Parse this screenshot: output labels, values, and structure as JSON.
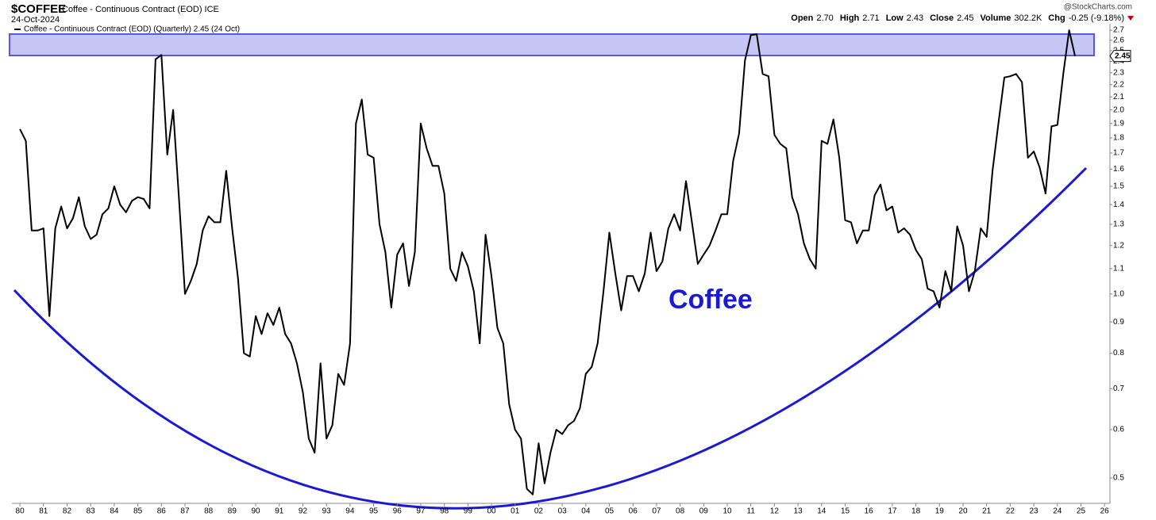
{
  "chart_data": {
    "type": "line",
    "title": "$COFFEE",
    "subtitle": "Coffee - Continuous Contract (EOD) ICE",
    "date": "24-Oct-2024",
    "source": "@StockCharts.com",
    "quote": [
      {
        "label": "Open",
        "value": "2.70"
      },
      {
        "label": "High",
        "value": "2.71"
      },
      {
        "label": "Low",
        "value": "2.43"
      },
      {
        "label": "Close",
        "value": "2.45"
      },
      {
        "label": "Volume",
        "value": "302.2K"
      },
      {
        "label": "Chg",
        "value": "-0.25 (-9.18%)"
      }
    ],
    "annotation": "Coffee",
    "last_value": 2.45,
    "log_scale": true,
    "grid": false,
    "x": [
      1980,
      1980.25,
      1980.5,
      1980.75,
      1981,
      1981.25,
      1981.5,
      1981.75,
      1982,
      1982.25,
      1982.5,
      1982.75,
      1983,
      1983.25,
      1983.5,
      1983.75,
      1984,
      1984.25,
      1984.5,
      1984.75,
      1985,
      1985.25,
      1985.5,
      1985.75,
      1986,
      1986.25,
      1986.5,
      1986.75,
      1987,
      1987.25,
      1987.5,
      1987.75,
      1988,
      1988.25,
      1988.5,
      1988.75,
      1989,
      1989.25,
      1989.5,
      1989.75,
      1990,
      1990.25,
      1990.5,
      1990.75,
      1991,
      1991.25,
      1991.5,
      1991.75,
      1992,
      1992.25,
      1992.5,
      1992.75,
      1993,
      1993.25,
      1993.5,
      1993.75,
      1994,
      1994.25,
      1994.5,
      1994.75,
      1995,
      1995.25,
      1995.5,
      1995.75,
      1996,
      1996.25,
      1996.5,
      1996.75,
      1997,
      1997.25,
      1997.5,
      1997.75,
      1998,
      1998.25,
      1998.5,
      1998.75,
      1999,
      1999.25,
      1999.5,
      1999.75,
      2000,
      2000.25,
      2000.5,
      2000.75,
      2001,
      2001.25,
      2001.5,
      2001.75,
      2002,
      2002.25,
      2002.5,
      2002.75,
      2003,
      2003.25,
      2003.5,
      2003.75,
      2004,
      2004.25,
      2004.5,
      2004.75,
      2005,
      2005.25,
      2005.5,
      2005.75,
      2006,
      2006.25,
      2006.5,
      2006.75,
      2007,
      2007.25,
      2007.5,
      2007.75,
      2008,
      2008.25,
      2008.5,
      2008.75,
      2009,
      2009.25,
      2009.5,
      2009.75,
      2010,
      2010.25,
      2010.5,
      2010.75,
      2011,
      2011.25,
      2011.5,
      2011.75,
      2012,
      2012.25,
      2012.5,
      2012.75,
      2013,
      2013.25,
      2013.5,
      2013.75,
      2014,
      2014.25,
      2014.5,
      2014.75,
      2015,
      2015.25,
      2015.5,
      2015.75,
      2016,
      2016.25,
      2016.5,
      2016.75,
      2017,
      2017.25,
      2017.5,
      2017.75,
      2018,
      2018.25,
      2018.5,
      2018.75,
      2019,
      2019.25,
      2019.5,
      2019.75,
      2020,
      2020.25,
      2020.5,
      2020.75,
      2021,
      2021.25,
      2021.5,
      2021.75,
      2022,
      2022.25,
      2022.5,
      2022.75,
      2023,
      2023.25,
      2023.5,
      2023.75,
      2024,
      2024.25,
      2024.5,
      2024.75
    ],
    "series": [
      {
        "name": "Coffee - Continuous Contract (EOD) (Quarterly) 2.45 (24 Oct)",
        "color": "#000000",
        "values": [
          1.86,
          1.78,
          1.27,
          1.27,
          1.28,
          0.92,
          1.28,
          1.39,
          1.28,
          1.33,
          1.44,
          1.29,
          1.23,
          1.25,
          1.35,
          1.38,
          1.5,
          1.4,
          1.36,
          1.42,
          1.44,
          1.43,
          1.38,
          2.42,
          2.46,
          1.69,
          2.0,
          1.42,
          1.0,
          1.05,
          1.12,
          1.27,
          1.34,
          1.31,
          1.31,
          1.59,
          1.28,
          1.06,
          0.8,
          0.79,
          0.92,
          0.86,
          0.93,
          0.89,
          0.95,
          0.86,
          0.83,
          0.77,
          0.69,
          0.58,
          0.55,
          0.77,
          0.58,
          0.61,
          0.74,
          0.71,
          0.83,
          1.9,
          2.08,
          1.69,
          1.67,
          1.3,
          1.17,
          0.95,
          1.16,
          1.21,
          1.03,
          1.17,
          1.9,
          1.73,
          1.62,
          1.62,
          1.46,
          1.1,
          1.05,
          1.17,
          1.11,
          1.01,
          0.83,
          1.25,
          1.07,
          0.88,
          0.83,
          0.66,
          0.6,
          0.58,
          0.48,
          0.47,
          0.57,
          0.49,
          0.55,
          0.6,
          0.59,
          0.61,
          0.62,
          0.65,
          0.74,
          0.76,
          0.83,
          1.01,
          1.26,
          1.08,
          0.94,
          1.07,
          1.07,
          1.01,
          1.08,
          1.26,
          1.09,
          1.13,
          1.28,
          1.35,
          1.27,
          1.53,
          1.31,
          1.12,
          1.16,
          1.2,
          1.27,
          1.35,
          1.35,
          1.65,
          1.83,
          2.41,
          2.65,
          2.66,
          2.29,
          2.27,
          1.82,
          1.76,
          1.73,
          1.44,
          1.35,
          1.21,
          1.14,
          1.1,
          1.78,
          1.76,
          1.93,
          1.67,
          1.32,
          1.31,
          1.21,
          1.27,
          1.27,
          1.45,
          1.51,
          1.37,
          1.39,
          1.26,
          1.28,
          1.25,
          1.18,
          1.14,
          1.02,
          1.01,
          0.95,
          1.09,
          1.01,
          1.29,
          1.2,
          1.01,
          1.09,
          1.28,
          1.24,
          1.59,
          1.9,
          2.26,
          2.27,
          2.29,
          2.22,
          1.67,
          1.71,
          1.61,
          1.46,
          1.88,
          1.89,
          2.29,
          2.7,
          2.45
        ]
      }
    ],
    "xlim": [
      1979.66,
      2026.23
    ],
    "xticks": [
      {
        "value": 1980,
        "label": "80"
      },
      {
        "value": 1981,
        "label": "81"
      },
      {
        "value": 1982,
        "label": "82"
      },
      {
        "value": 1983,
        "label": "83"
      },
      {
        "value": 1984,
        "label": "84"
      },
      {
        "value": 1985,
        "label": "85"
      },
      {
        "value": 1986,
        "label": "86"
      },
      {
        "value": 1987,
        "label": "87"
      },
      {
        "value": 1988,
        "label": "88"
      },
      {
        "value": 1989,
        "label": "89"
      },
      {
        "value": 1990,
        "label": "90"
      },
      {
        "value": 1991,
        "label": "91"
      },
      {
        "value": 1992,
        "label": "92"
      },
      {
        "value": 1993,
        "label": "93"
      },
      {
        "value": 1994,
        "label": "94"
      },
      {
        "value": 1995,
        "label": "95"
      },
      {
        "value": 1996,
        "label": "96"
      },
      {
        "value": 1997,
        "label": "97"
      },
      {
        "value": 1998,
        "label": "98"
      },
      {
        "value": 1999,
        "label": "99"
      },
      {
        "value": 2000,
        "label": "00"
      },
      {
        "value": 2001,
        "label": "01"
      },
      {
        "value": 2002,
        "label": "02"
      },
      {
        "value": 2003,
        "label": "03"
      },
      {
        "value": 2004,
        "label": "04"
      },
      {
        "value": 2005,
        "label": "05"
      },
      {
        "value": 2006,
        "label": "06"
      },
      {
        "value": 2007,
        "label": "07"
      },
      {
        "value": 2008,
        "label": "08"
      },
      {
        "value": 2009,
        "label": "09"
      },
      {
        "value": 2010,
        "label": "10"
      },
      {
        "value": 2011,
        "label": "11"
      },
      {
        "value": 2012,
        "label": "12"
      },
      {
        "value": 2013,
        "label": "13"
      },
      {
        "value": 2014,
        "label": "14"
      },
      {
        "value": 2015,
        "label": "15"
      },
      {
        "value": 2016,
        "label": "16"
      },
      {
        "value": 2017,
        "label": "17"
      },
      {
        "value": 2018,
        "label": "18"
      },
      {
        "value": 2019,
        "label": "19"
      },
      {
        "value": 2020,
        "label": "20"
      },
      {
        "value": 2021,
        "label": "21"
      },
      {
        "value": 2022,
        "label": "22"
      },
      {
        "value": 2023,
        "label": "23"
      },
      {
        "value": 2024,
        "label": "24"
      },
      {
        "value": 2025,
        "label": "25"
      },
      {
        "value": 2026,
        "label": "26"
      }
    ],
    "ylim": [
      0.4545,
      2.766
    ],
    "yticks": [
      0.5,
      0.6,
      0.7,
      0.8,
      0.9,
      {
        "value": 1,
        "label": "1.0"
      },
      1.1,
      1.2,
      1.3,
      1.4,
      1.5,
      1.6,
      1.7,
      1.8,
      1.9,
      {
        "value": 2,
        "label": "2.0"
      },
      2.1,
      2.2,
      2.3,
      2.4,
      2.5,
      2.6,
      2.7
    ]
  }
}
